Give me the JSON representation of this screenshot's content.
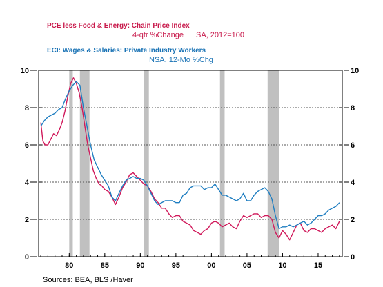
{
  "chart_data": {
    "type": "line",
    "legend": {
      "pce_title": "PCE less Food & Energy: Chain Price Index",
      "pce_sub_a": "4-qtr %Change",
      "pce_sub_b": "SA, 2012=100",
      "eci_title": "ECI: Wages & Salaries: Private Industry Workers",
      "eci_sub": "NSA, 12-Mo %Chg"
    },
    "source": "Sources:  BEA, BLS /Haver",
    "xlim": [
      1975.7,
      2018.4
    ],
    "ylim": [
      0,
      10
    ],
    "x_ticks": [
      {
        "value": 1980,
        "label": "80"
      },
      {
        "value": 1985,
        "label": "85"
      },
      {
        "value": 1990,
        "label": "90"
      },
      {
        "value": 1995,
        "label": "95"
      },
      {
        "value": 2000,
        "label": "00"
      },
      {
        "value": 2005,
        "label": "05"
      },
      {
        "value": 2010,
        "label": "10"
      },
      {
        "value": 2015,
        "label": "15"
      }
    ],
    "y_ticks": [
      0,
      2,
      4,
      6,
      8,
      10
    ],
    "gridlines_y": [
      2,
      4,
      6,
      8
    ],
    "recessions": [
      [
        1980.0,
        1980.5
      ],
      [
        1981.5,
        1982.85
      ],
      [
        1990.5,
        1991.2
      ],
      [
        2001.2,
        2001.85
      ],
      [
        2007.9,
        2009.5
      ]
    ],
    "colors": {
      "pce": "#d0185a",
      "eci": "#1f7ec1",
      "recession": "#c0c0c0",
      "grid": "#555555"
    },
    "series": [
      {
        "name": "PCE less Food & Energy: Chain Price Index",
        "color": "#d0185a",
        "x": [
          1976.0,
          1976.3,
          1976.6,
          1977.0,
          1977.4,
          1977.8,
          1978.2,
          1978.6,
          1979.0,
          1979.4,
          1979.8,
          1980.2,
          1980.6,
          1981.0,
          1981.4,
          1981.8,
          1982.2,
          1982.6,
          1983.0,
          1983.4,
          1983.8,
          1984.2,
          1984.6,
          1985.0,
          1985.5,
          1986.0,
          1986.5,
          1987.0,
          1987.5,
          1988.0,
          1988.5,
          1989.0,
          1989.5,
          1990.0,
          1990.5,
          1991.0,
          1991.5,
          1992.0,
          1992.5,
          1993.0,
          1993.5,
          1994.0,
          1994.5,
          1995.0,
          1995.5,
          1996.0,
          1996.5,
          1997.0,
          1997.5,
          1998.0,
          1998.5,
          1999.0,
          1999.5,
          2000.0,
          2000.5,
          2001.0,
          2001.5,
          2002.0,
          2002.5,
          2003.0,
          2003.5,
          2004.0,
          2004.5,
          2005.0,
          2005.5,
          2006.0,
          2006.5,
          2007.0,
          2007.5,
          2008.0,
          2008.5,
          2009.0,
          2009.5,
          2010.0,
          2010.5,
          2011.0,
          2011.5,
          2012.0,
          2012.5,
          2013.0,
          2013.5,
          2014.0,
          2014.5,
          2015.0,
          2015.5,
          2016.0,
          2016.5,
          2017.0,
          2017.5,
          2018.0
        ],
        "y": [
          7.2,
          6.2,
          6.0,
          6.0,
          6.3,
          6.6,
          6.5,
          6.8,
          7.2,
          7.8,
          8.6,
          9.3,
          9.6,
          9.3,
          8.8,
          8.0,
          7.0,
          6.0,
          5.3,
          4.6,
          4.2,
          3.9,
          3.8,
          3.6,
          3.5,
          3.2,
          2.8,
          3.2,
          3.7,
          4.0,
          4.4,
          4.5,
          4.3,
          4.1,
          3.9,
          3.8,
          3.5,
          3.1,
          2.9,
          2.6,
          2.6,
          2.3,
          2.1,
          2.2,
          2.2,
          1.9,
          1.8,
          1.7,
          1.4,
          1.3,
          1.2,
          1.4,
          1.5,
          1.8,
          1.9,
          1.8,
          1.6,
          1.7,
          1.8,
          1.6,
          1.5,
          1.9,
          2.2,
          2.1,
          2.2,
          2.3,
          2.3,
          2.1,
          2.2,
          2.2,
          2.0,
          1.3,
          1.0,
          1.4,
          1.2,
          0.9,
          1.3,
          1.7,
          1.8,
          1.4,
          1.3,
          1.5,
          1.5,
          1.4,
          1.3,
          1.5,
          1.6,
          1.7,
          1.5,
          1.9
        ]
      },
      {
        "name": "ECI: Wages & Salaries: Private Industry Workers",
        "color": "#1f7ec1",
        "x": [
          1976.0,
          1976.5,
          1977.0,
          1977.5,
          1978.0,
          1978.5,
          1979.0,
          1979.5,
          1980.0,
          1980.5,
          1981.0,
          1981.5,
          1982.0,
          1982.5,
          1983.0,
          1983.5,
          1984.0,
          1984.5,
          1985.0,
          1985.5,
          1986.0,
          1986.5,
          1987.0,
          1987.5,
          1988.0,
          1988.5,
          1989.0,
          1989.5,
          1990.0,
          1990.5,
          1991.0,
          1991.5,
          1992.0,
          1992.5,
          1993.0,
          1993.5,
          1994.0,
          1994.5,
          1995.0,
          1995.5,
          1996.0,
          1996.5,
          1997.0,
          1997.5,
          1998.0,
          1998.5,
          1999.0,
          1999.5,
          2000.0,
          2000.5,
          2001.0,
          2001.5,
          2002.0,
          2002.5,
          2003.0,
          2003.5,
          2004.0,
          2004.5,
          2005.0,
          2005.5,
          2006.0,
          2006.5,
          2007.0,
          2007.5,
          2008.0,
          2008.5,
          2009.0,
          2009.5,
          2010.0,
          2010.5,
          2011.0,
          2011.5,
          2012.0,
          2012.5,
          2013.0,
          2013.5,
          2014.0,
          2014.5,
          2015.0,
          2015.5,
          2016.0,
          2016.5,
          2017.0,
          2017.5,
          2018.0
        ],
        "y": [
          7.0,
          7.3,
          7.5,
          7.6,
          7.7,
          7.9,
          8.0,
          8.5,
          8.9,
          9.2,
          9.4,
          9.2,
          8.0,
          7.0,
          6.0,
          5.2,
          4.8,
          4.4,
          4.1,
          3.8,
          3.2,
          3.0,
          3.4,
          3.8,
          4.1,
          4.2,
          4.3,
          4.2,
          4.2,
          4.1,
          3.8,
          3.4,
          3.0,
          2.8,
          2.9,
          3.0,
          3.0,
          3.0,
          2.9,
          2.9,
          3.3,
          3.4,
          3.7,
          3.8,
          3.8,
          3.8,
          3.6,
          3.7,
          3.7,
          3.9,
          3.6,
          3.3,
          3.3,
          3.2,
          3.1,
          3.0,
          3.1,
          3.4,
          3.0,
          3.0,
          3.3,
          3.5,
          3.6,
          3.7,
          3.5,
          3.1,
          2.2,
          1.5,
          1.6,
          1.6,
          1.7,
          1.6,
          1.7,
          1.8,
          1.9,
          1.7,
          1.8,
          2.0,
          2.2,
          2.2,
          2.3,
          2.5,
          2.6,
          2.7,
          2.9
        ]
      }
    ]
  }
}
